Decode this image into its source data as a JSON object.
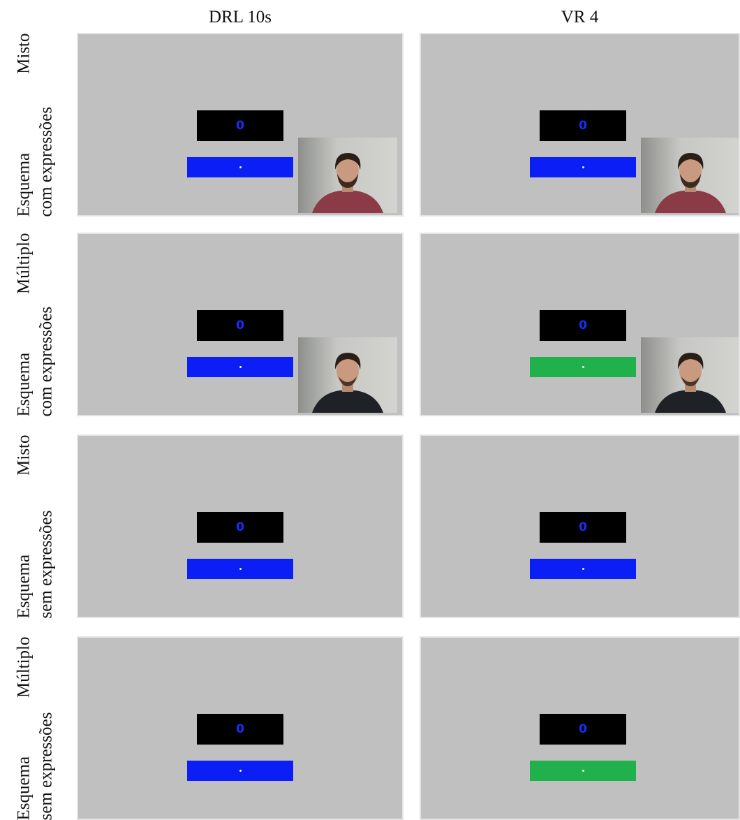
{
  "columns": [
    "DRL 10s",
    "VR 4"
  ],
  "rows": [
    {
      "label": [
        "Esquema Misto",
        "com expressões"
      ],
      "panels": [
        {
          "counter": "0",
          "bar_color": "#0a1ef5",
          "webcam": true
        },
        {
          "counter": "0",
          "bar_color": "#0a1ef5",
          "webcam": true
        }
      ]
    },
    {
      "label": [
        "Esquema Múltiplo",
        "com expressões"
      ],
      "panels": [
        {
          "counter": "0",
          "bar_color": "#0a1ef5",
          "webcam": true
        },
        {
          "counter": "0",
          "bar_color": "#21b14c",
          "webcam": true
        }
      ]
    },
    {
      "label": [
        "Esquema Misto",
        "sem expressões"
      ],
      "panels": [
        {
          "counter": "0",
          "bar_color": "#0a1ef5",
          "webcam": false
        },
        {
          "counter": "0",
          "bar_color": "#0a1ef5",
          "webcam": false
        }
      ]
    },
    {
      "label": [
        "Esquema Múltiplo",
        "sem expressões"
      ],
      "panels": [
        {
          "counter": "0",
          "bar_color": "#0a1ef5",
          "webcam": false
        },
        {
          "counter": "0",
          "bar_color": "#21b14c",
          "webcam": false
        }
      ]
    }
  ]
}
